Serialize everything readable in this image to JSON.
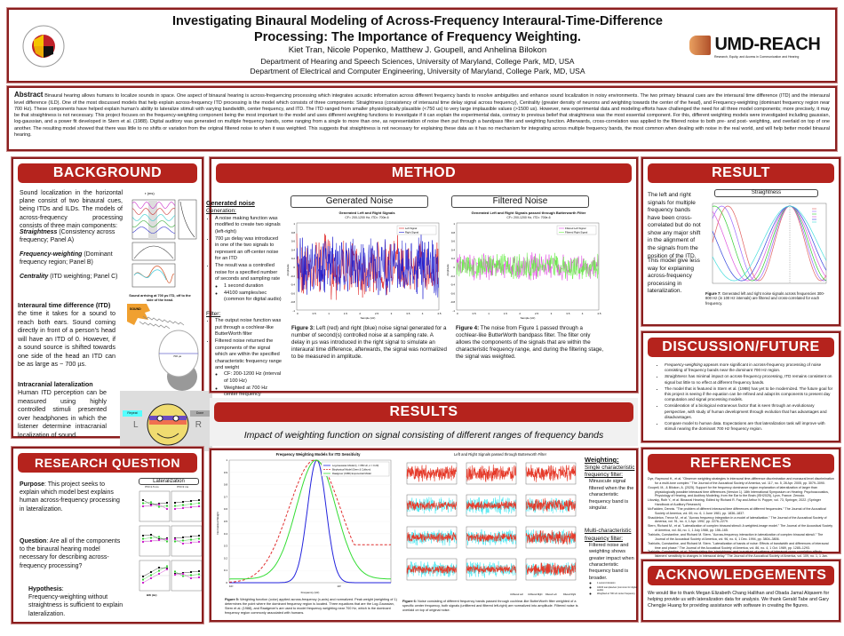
{
  "header": {
    "title_line1": "Investigating Binaural Modeling of Across-Frequency Interaural-Time-Difference",
    "title_line2": "Processing: The Importance of Frequency Weighting.",
    "authors": "Kiet Tran, Nicole Popenko, Matthew J. Goupell, and Anhelina Bilokon",
    "affil1": "Department of Hearing and Speech Sciences, University of Maryland, College Park, MD, USA",
    "affil2": "Department of Electrical and Computer Engineering, University of Maryland, College Park, MD, USA",
    "logo_left": "UNIVERSITY OF MARYLAND 1856",
    "logo_right": "UMD-REACH",
    "logo_right_sub": "Research, Equity, and Access in Communication and Hearing"
  },
  "abstract": {
    "label": "Abstract",
    "text": "Binaural hearing allows humans to localize sounds in space. One aspect of binaural hearing is across-frequencing processing which integrates acoustic information across different frequency bands to resolve ambiguities and enhance sound localization in noisy environments. The two primary binaural cues are the interaural time difference (ITD) and the interaural level difference (ILD). One of the most discussed models that help explain across-frequency ITD processing is the model which consists of three components: Straightness (consistency of interaural time delay signal across frequency), Centrality (greater density of neurons and weighting towards the center of the head), and Frequency-weighting (dominant frequency region near 700 Hz). These components have helped explain human's ability to lateralize stimuli with varying bandwidth, center frequency, and ITD. The ITD ranged from smaller physiologically plausible (<750 us) to very large implausible values (>1500 us). However, new experimental data and modeling efforts have challenged the need for all three model components; more precisely, it may be that straightness is not necessary. This project focuses on the frequency-weighting component being the most important to the model and uses different weighting functions to investigate if it can explain the experimental data, contrary to previous belief that straightness was the most essential component. For this, different weighting models were investigated including gaussian, log-gaussian, and a power fit developed in Stern et al. (1988). Digital auditory was generated on multiple frequency bands, some ranging from a single to more than one, as representation of noise then put through a bandpass filter and weighting function. Afterwards, cross-correlation was applied to the filtered noise to both pre- and post- weighting, and overlaid on top of one another. The resulting model showed that there was little to no shifts or variation from the original filtered noise to when it was weighted. This suggests that straightness is not necessary for explaining these data as it has no mechanism for integrating across multiple frequency bands, the most common when dealing with noise in the real world, and will help better model binaural hearing."
  },
  "background": {
    "title": "BACKGROUND",
    "intro": "Sound localization in the horizontal plane consist of two binaural cues, being ITDs and ILDs. The models of across-frequency processing consists of three main components:",
    "c1_term": "Straightness",
    "c1_desc": " (Consistency across frequency; Panel A)",
    "c2_term": "Frequency-weighting",
    "c2_desc": " (Dominant frequency region; Panel B)",
    "c3_term": "Centrality",
    "c3_desc": " (ITD weighting; Panel C)",
    "itd_head": "Interaural time difference (ITD)",
    "itd_text": "the time it takes for a sound to reach both ears. Sound coming directly in front of a person's head will have an ITD of 0. However, if a sound source is shifted towards one side of the head an ITD can be as large as ~ 700 µs.",
    "itd_caption": "Sound arriving at 700 µs ITD, off to the side of the head.",
    "sound_label": "SOUND",
    "itd_value": "700 µs",
    "lat_head": "Intracranial lateralization",
    "lat_text": "Human ITD perception can be measured using highly controlled stimuli presented over headphones in which the listener determine intracranial localization of sound.",
    "gui": {
      "repeat": "Repeat",
      "done": "Done",
      "left": "L",
      "right": "R"
    },
    "fig_axis": "τ (ms)"
  },
  "method": {
    "title": "METHOD",
    "gen_head": "Generated noise",
    "gen_sub": "Generation:",
    "gen_items": [
      "A noise making function was modified to create two signals (left-right)",
      "700 µs delay was introduced in one of the two signals to represent an off-center noise for an ITD",
      "The result was a controlled noise for a specified number of seconds and sampling rate"
    ],
    "gen_subitems": [
      "1 second duration",
      "44100 samples/sec (common for digital audio)"
    ],
    "filter_sub": "Filter:",
    "filter_items": [
      "The output noise function was put through a cochlear-like ButterWorth filter",
      "Filtered noise returned the components of the signal which are within the specified characteristic frequency range and weight"
    ],
    "filter_subitems": [
      "CF: 200-1200 Hz (interval of 100 Hz)",
      "Weighted at 700 Hz center frequency"
    ],
    "fig3": {
      "box": "Generated Noise",
      "title": "Generated Left and Right Signals",
      "subtitle": "CF= 200-1200 Hz, ITD= 700e-6",
      "legend": [
        "Left Signal",
        "Right Signal"
      ],
      "xlabel": "Sample (Hz)",
      "ylabel": "Amplitude",
      "caption_label": "Figure 3:",
      "caption": " Left (red) and right (blue) noise signal generated for a number of second(s) controlled noise at a sampling rate. A delay in µs was introduced in the right signal to simulate an interaural time difference, afterwards, the signal was normalized to be measured in amplitude."
    },
    "fig4": {
      "box": "Filtered Noise",
      "title": "Generated Left and Right Signals passed through Butterworth Filter",
      "subtitle": "CF= 200-1200 Hz, ITD= 700e-6",
      "legend": [
        "Filtered Left Signal",
        "Filtered Right Signal"
      ],
      "xlabel": "Sample (Hz)",
      "ylabel": "Amplitude",
      "caption_label": "Figure 4:",
      "caption": " The noise from Figure 1 passed through a cochlear-like ButterWorth bandpass filter. The filter only allows the components of the signals that are within the characteristic frequency range, and during the filtering stage, the signal was weighted."
    }
  },
  "results": {
    "title": "RESULTS",
    "subtitle": "Impact of weighting function on signal consisting of different ranges of frequency bands",
    "fig5": {
      "title": "Frequency Weighting Models for ITD Sensitivity",
      "legend": [
        "Log-Gaussian Model (f₀ = 650 Hz, σ = 0.20)",
        "Biophysical Model (Stern & Colburn)",
        "Raatgever (1980) Exponential Model"
      ],
      "xlabel": "Frequency (Hz)",
      "ylabel": "Normalized Weight",
      "caption_label": "Figure 5:",
      "caption": " Weighting function (color) applied across-frequency (x-axis) and normalized. Peak weight (weighting of 1) determines the point where the dominant frequency region is located. Three equations that are the Log-Gaussian, Stern et al. (1988), and Raatgever's are used to model frequency weighting near 700 Hz, which is the dominant frequency region commonly associated with humans."
    },
    "fig6": {
      "title": "Left and Right Signals passed through Butterworth Filter",
      "legend": [
        "Unfiltered Left",
        "Unfiltered Right",
        "Filtered Left",
        "Filtered Right"
      ],
      "caption_label": "Figure 6:",
      "caption": " Noise consisting of different frequency bands passed through cochlear-like ButterWorth filter weighted of a specific center frequency, both signals (unfiltered and filtered left-right) are normalized into amplitude. Filtered noise is overlaid on top of original noise."
    },
    "weighting": {
      "head": "Weighting:",
      "single_head": "Single characteristic frequency filter:",
      "single_text": "Minuscule signal filtered when the the characteristic frequency band is singular.",
      "multi_head": "Multi-characteristic frequency filter:",
      "multi_text": "Filtered noise and weighting shows greater impact when characteristic frequency band is broader.",
      "notes": [
        "1 second duration",
        "44100 samples/sec (common for digital audio)",
        "Weighted at 700 Hz center frequency"
      ]
    }
  },
  "research": {
    "title": "RESEARCH QUESTION",
    "purpose_label": "Purpose",
    "purpose": ": This project seeks to explain which model best explains human across-frequency processing in lateralization.",
    "question_label": "Question",
    "question": ": Are all of the components to the binaural hearing model necessary for describing across-frequency processing?",
    "hyp_label": "Hypothesis",
    "hyp": "Frequency-weighting without straightness is sufficient to explain  lateralization.",
    "fig_box": "Lateralization",
    "col_titles": [
      "ITD=1.5 ms",
      "ITD=3 ms"
    ],
    "xlabel": "BW (Hz)"
  },
  "result": {
    "title": "RESULT",
    "text1": "The left and right signals for multiple frequency bands have been cross-correlated but do not show any major shift in the alignment of the signals from the position of the ITD.",
    "text2": "This model give less way for explaining across-frequency processing in lateralization.",
    "fig7_box": "Straightness",
    "fig7_label": "Figure 7:",
    "fig7_caption": " Generated left and right noise signals across frequencies 300-800 Hz (in 100 Hz intervals) are filtered and cross-correlated for each frequency."
  },
  "discussion": {
    "title": "DISCUSSION/FUTURE",
    "items": [
      [
        "Frequency-weighting",
        " appears more significant in across-frequency processing of noise consisting of frequency bands near the dominant 700 Hz region."
      ],
      [
        "Straightness",
        " has minimal impact on across-frequency processing, ITD remains consistent on signal but little to no effect at different frequency bands."
      ],
      [
        "",
        " The model that is featured in Stern et al. (1988) has yet to be modernized. The future goal for this project is seeing if the equation can be refined and adapt its components to present day computation and signal processing models."
      ],
      [
        "",
        " Consideration of a biological extraneous factor that is seen through an evolutionary perspective, with study of human development through evolution that has advantages and disadvantages."
      ],
      [
        "",
        " Compare model to human data. Expectations are that lateralization task will improve with stimuli nearing the dominant 700 Hz frequency region."
      ]
    ]
  },
  "references": {
    "title": "REFERENCES",
    "items": [
      "Dye, Raymond H., et al. \"Observer weighting strategies in interaural time-difference discrimination and monaural level discrimination for a multi-tone complex.\" The Journal of the Acoustical Society of America, vol. 117, no. 5, 28 Apr. 2005, pp. 3079–3090.",
      "Goupell, M., & Bilokon, A. (2025). Support for the frequency dominance region explanation of lateralization of larger than physiologically possible interaural time differences (Version 1). 18th International Symposium on Hearing: Psychoacoustics, Physiology of Hearing, and Auditory Modeling, from the Ear to the Brain (ISH2025), Lyon, France. Zenodo.",
      "Litovsky, Ruth Y., et al. Binaural Hearing. Edited by Richard R. Fay and Arthur N. Popper, vol. 73, Springer, 2022. (Springer Handbook of Auditory Research)",
      "McFadden, Dennis. \"The problem of different interaural time differences at different frequencies.\" The Journal of the Acoustical Society of America, vol. 69, no. 6, 1 June 1981, pp. 1836–1837.",
      "Shackleton, Trevor M., et al. \"Across frequency integration in a model of lateralization.\" The Journal of the Acoustical Society of America, vol. 91, no. 4, 1 Apr. 1992, pp. 2276–2279.",
      "Stern, Richard M., et al. \"Lateralization of complex binaural stimuli: A weighted-image model.\" The Journal of the Acoustical Society of America, vol. 84, no. 1, 1 July 1988, pp. 156–165.",
      "Trahiotis, Constantine, and Richard M. Stern. \"Across-frequency interaction in lateralization of complex binaural stimuli.\" The Journal of the Acoustical Society of America, vol. 96, no. 6, 1 Dec. 1994, pp. 3804–3806.",
      "Trahiotis, Constantine, and Richard M. Stern. \"Lateralization of bands of noise: Effects of bandwidth and differences of interaural time and phase.\" The Journal of the Acoustical Society of America, vol. 86, no. 4, 1 Oct. 1989, pp. 1285–1293.",
      "Trahiotis, Constantine, et al. \"Manipulating the 'straightness' and 'curvature' of patterns of interaural cross correlation affects listeners' sensitivity to changes in interaural delay.\" The Journal of the Acoustical Society of America, vol. 109, no. 1, 1 Jan. 2001, pp. 321–330."
    ]
  },
  "acknowledgements": {
    "title": "ACKNOWLEDGEMENTS",
    "text": "We would like to thank Megan Elizabeth Chang Hallihan and Obada Jamal Alqasem for helping provide us with lateralization data for analysis. We thank Gerald Tabe and Gary Chengjie Huang for providing assistance with software in creating the figures."
  },
  "colors": {
    "accent": "#b5231d",
    "border": "#8b1e1e",
    "left_signal": "#e02020",
    "right_signal": "#1a1ad0",
    "filtered": "#66ee44",
    "cyan": "#44e6f0"
  }
}
